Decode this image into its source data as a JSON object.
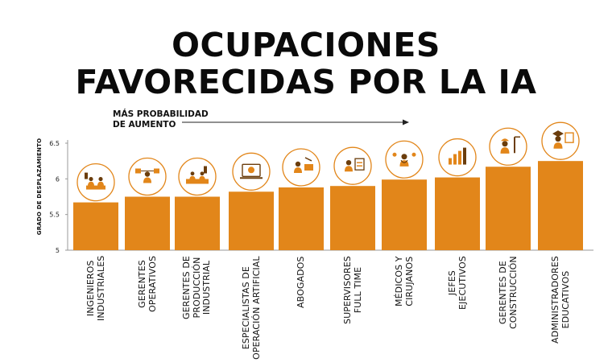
{
  "title_line1": "OCUPACIONES",
  "title_line2": "FAVORECIDAS POR LA IA",
  "annotation": {
    "line1": "MÁS PROBABILIDAD",
    "line2": "DE AUMENTO"
  },
  "colors": {
    "bar": "#E2861A",
    "icon_ring": "#E2861A",
    "icon_fill": "#E2861A",
    "icon_dark": "#6b3d0c",
    "axis": "#999999"
  },
  "chart_data": {
    "type": "bar",
    "title": "OCUPACIONES FAVORECIDAS POR LA IA",
    "xlabel": "",
    "ylabel": "GRADO DE DESPLAZAMIENTO",
    "ylim": [
      5,
      6.5
    ],
    "yticks": [
      "5",
      "5.5",
      "6",
      "6.5"
    ],
    "grid": false,
    "categories": [
      "INGENIEROS\nINDUSTRIALES",
      "GERENTES\nOPERATIVOS",
      "GERENTES DE\nPRODUCCIÓN\nINDUSTRIAL",
      "ESPECIALISTAS DE\nOPERACIÓN ARTIFICIAL",
      "ABOGADOS",
      "SUPERVISORES\nFULL TIME",
      "MÉDICOS Y\nCIRUJANOS",
      "JEFES\nEJECUTIVOS",
      "GERENTES DE\nCONSTRUCCIÓN",
      "ADMINISTRADORES\nEDUCATIVOS"
    ],
    "values": [
      5.67,
      5.75,
      5.75,
      5.82,
      5.88,
      5.9,
      5.99,
      6.02,
      6.17,
      6.25
    ],
    "icons": [
      "factory-workers-icon",
      "operations-manager-icon",
      "production-line-icon",
      "ai-specialist-icon",
      "lawyer-icon",
      "supervisor-icon",
      "doctor-icon",
      "executive-chart-icon",
      "construction-manager-icon",
      "education-admin-icon"
    ]
  }
}
